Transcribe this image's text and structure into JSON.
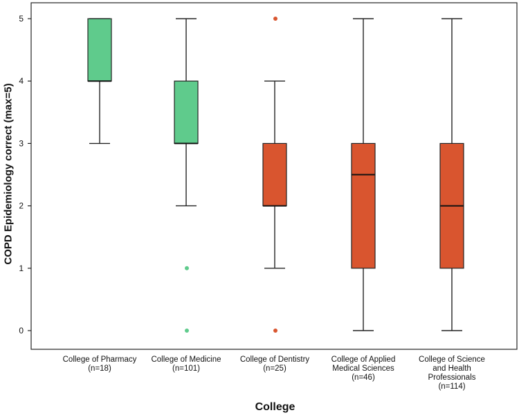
{
  "chart_data": {
    "type": "boxplot",
    "title": "",
    "xlabel": "College",
    "ylabel": "COPD Epidemiology correct (max=5)",
    "ylim": [
      0,
      5
    ],
    "yticks": [
      "0",
      "1",
      "2",
      "3",
      "4",
      "5"
    ],
    "categories": [
      {
        "name": "College of Pharmacy",
        "n": "(n=18)",
        "min": 3,
        "q1": 4,
        "median": 4,
        "q3": 5,
        "max": 5,
        "outliers": [],
        "color": "#5fcb8c"
      },
      {
        "name": "College of Medicine",
        "n": "(n=101)",
        "min": 2,
        "q1": 3,
        "median": 3,
        "q3": 4,
        "max": 5,
        "outliers": [
          1,
          0
        ],
        "color": "#5fcb8c"
      },
      {
        "name": "College of Dentistry",
        "n": "(n=25)",
        "min": 1,
        "q1": 2,
        "median": 2,
        "q3": 3,
        "max": 4,
        "outliers": [
          5,
          0
        ],
        "color": "#d9552f"
      },
      {
        "name": "College of Applied\nMedical Sciences",
        "n": "(n=46)",
        "min": 0,
        "q1": 1,
        "median": 2.5,
        "q3": 3,
        "max": 5,
        "outliers": [],
        "color": "#d9552f"
      },
      {
        "name": "College of Science\nand Health\nProfessionals",
        "n": "(n=114)",
        "min": 0,
        "q1": 1,
        "median": 2,
        "q3": 3,
        "max": 5,
        "outliers": [],
        "color": "#d9552f"
      }
    ]
  }
}
